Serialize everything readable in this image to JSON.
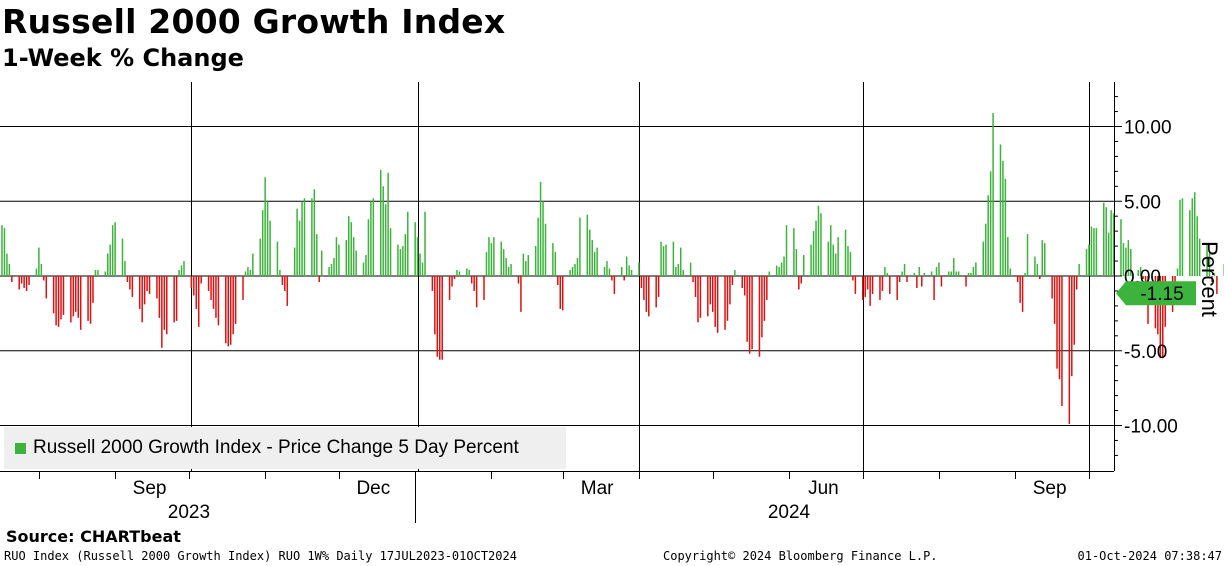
{
  "header": {
    "title": "Russell 2000 Growth Index",
    "subtitle": "1-Week % Change"
  },
  "source": "Source: CHARTbeat",
  "footer": {
    "left": "RUO Index (Russell 2000 Growth Index) RUO 1W% Daily 17JUL2023-01OCT2024",
    "center": "Copyright© 2024 Bloomberg Finance L.P.",
    "right": "01-Oct-2024 07:38:47"
  },
  "colors": {
    "positive": "#3cb43c",
    "negative": "#e01010",
    "last_value_tag": "#3cb43c"
  },
  "chart_data": {
    "type": "bar",
    "title": "Russell 2000 Growth Index",
    "subtitle": "1-Week % Change",
    "ylabel": "Percent",
    "ylim": [
      -13,
      13
    ],
    "yticks": [
      10,
      5,
      0,
      -5,
      -10
    ],
    "ytick_labels": [
      "10.00",
      "5.00",
      "0.00",
      "-5.00",
      "-10.00"
    ],
    "x_range": [
      "2023-07-17",
      "2024-10-01"
    ],
    "month_ticks": [
      {
        "label": "Sep",
        "date": "2023-09-15"
      },
      {
        "label": "Dec",
        "date": "2023-12-15"
      },
      {
        "label": "Mar",
        "date": "2024-03-15"
      },
      {
        "label": "Jun",
        "date": "2024-06-15"
      },
      {
        "label": "Sep",
        "date": "2024-09-15"
      }
    ],
    "year_labels": [
      {
        "label": "2023",
        "center": "2023-10-01"
      },
      {
        "label": "2024",
        "center": "2024-06-01"
      }
    ],
    "grid": true,
    "legend": {
      "position": "bottom-left",
      "label": "Russell 2000 Growth Index - Price Change 5 Day Percent"
    },
    "last_value": -1.15,
    "last_value_label": "-1.15",
    "series": [
      {
        "name": "Russell 2000 Growth Index - Price Change 5 Day Percent",
        "start_date": "2023-07-17",
        "frequency": "business-daily",
        "values": [
          3.4,
          3.2,
          1.5,
          0.8,
          -0.4,
          -0.9,
          -0.5,
          -0.8,
          -1.0,
          -0.6,
          0.5,
          1.9,
          0.8,
          -0.3,
          -1.5,
          -2.5,
          -3.3,
          -3.4,
          -2.9,
          -2.6,
          -3.1,
          -2.7,
          -2.4,
          -2.8,
          -3.6,
          -3.0,
          -3.2,
          -1.8,
          0.4,
          0.4,
          0.3,
          1.5,
          2.1,
          3.4,
          3.6,
          2.5,
          1.0,
          -0.4,
          -0.9,
          -1.4,
          -2.2,
          -3.1,
          -1.9,
          -1.0,
          -1.2,
          -1.5,
          -2.8,
          -4.8,
          -3.6,
          -3.9,
          -3.1,
          -3.0,
          0.4,
          0.7,
          1.0,
          -0.8,
          -1.3,
          -2.2,
          -3.4,
          -0.5,
          -1.0,
          -1.6,
          -2.2,
          -2.8,
          -3.3,
          -4.5,
          -4.7,
          -4.6,
          -3.9,
          -3.2,
          -1.6,
          0.3,
          0.6,
          0.4,
          1.5,
          2.5,
          4.4,
          6.6,
          5.0,
          3.7,
          2.3,
          0.4,
          -0.6,
          -1.0,
          -2.0,
          1.9,
          4.5,
          3.7,
          5.0,
          5.2,
          5.2,
          5.8,
          2.8,
          -0.4,
          1.7,
          0.6,
          0.8,
          1.2,
          2.6,
          2.1,
          2.4,
          4.0,
          3.6,
          2.6,
          1.7,
          0.9,
          1.4,
          3.8,
          5.0,
          5.2,
          7.1,
          6.0,
          4.8,
          6.9,
          3.2,
          2.1,
          1.8,
          2.0,
          2.8,
          4.3,
          3.6,
          2.6,
          1.5,
          0.9,
          4.3,
          -1.0,
          -3.9,
          -5.4,
          -5.6,
          -5.6,
          -1.6,
          -0.7,
          -0.2,
          0.4,
          0.3,
          0.5,
          0.4,
          -0.5,
          -1.0,
          -2.1,
          -1.6,
          1.6,
          2.6,
          2.2,
          2.6,
          2.3,
          1.8,
          1.2,
          0.6,
          0.8,
          -0.5,
          -2.4,
          1.5,
          1.0,
          1.4,
          2.0,
          3.9,
          6.3,
          5.0,
          3.5,
          2.2,
          1.6,
          -0.6,
          -2.2,
          -2.3,
          0.4,
          0.6,
          0.8,
          1.2,
          3.9,
          4.1,
          3.1,
          2.4,
          1.6,
          1.9,
          0.6,
          1.0,
          0.5,
          -0.3,
          -1.2,
          0.6,
          -0.3,
          1.3,
          0.7,
          0.4,
          0.9,
          -0.8,
          -1.6,
          -2.4,
          -2.7,
          -2.1,
          -1.4,
          2.3,
          2.0,
          2.1,
          2.3,
          0.6,
          0.8,
          1.9,
          0.4,
          0.9,
          -0.4,
          -1.4,
          -3.1,
          -2.8,
          -2.7,
          -1.9,
          -2.4,
          -3.4,
          -3.8,
          -3.6,
          -3.0,
          -1.9,
          -0.6,
          0.4,
          -0.8,
          -1.3,
          -4.4,
          -5.2,
          -4.9,
          -5.4,
          -4.1,
          -3.0,
          -1.6,
          0.3,
          0.7,
          0.6,
          0.9,
          1.3,
          3.4,
          3.2,
          1.8,
          -0.9,
          -0.5,
          1.4,
          2.1,
          3.0,
          3.7,
          4.7,
          4.2,
          2.3,
          3.4,
          2.1,
          1.5,
          2.6,
          3.1,
          2.0,
          1.6,
          -0.3,
          -1.2,
          -1.6,
          -1.4,
          -0.9,
          -2.0,
          -1.2,
          -1.6,
          -1.0,
          0.6,
          0.2,
          -1.2,
          -1.6,
          -0.4,
          0.3,
          0.8,
          -0.4,
          0.2,
          -0.8,
          0.6,
          -0.7,
          0.2,
          0.3,
          -1.6,
          0.6,
          0.9,
          -0.7,
          0.3,
          0.3,
          1.2,
          0.3,
          0.3,
          -0.7,
          0.2,
          0.2,
          0.6,
          0.9,
          2.3,
          3.5,
          5.4,
          7.0,
          10.9,
          8.8,
          7.7,
          6.5,
          2.6,
          0.5,
          -0.4,
          -1.8,
          -2.4,
          0.2,
          2.8,
          1.3,
          0.8,
          -0.2,
          2.4,
          2.2,
          -1.5,
          -3.2,
          -6.2,
          -6.9,
          -8.7,
          -9.9,
          -6.7,
          -4.6,
          -0.9,
          0.8,
          1.8,
          2.1,
          3.3,
          3.2,
          3.2,
          4.9,
          4.6,
          2.9,
          4.4,
          4.2,
          3.8,
          2.2,
          1.9,
          2.4,
          1.8,
          0.4,
          0.6,
          -0.2,
          -1.6,
          -3.2,
          -3.5,
          -3.9,
          -5.5,
          -5.5,
          -3.4,
          -2.4,
          -1.6,
          0.5,
          5.1,
          5.2,
          4.4,
          5.2,
          5.6,
          4.0,
          2.5,
          2.1,
          1.5,
          -0.4,
          0.2,
          -1.2,
          0.8,
          -1.15
        ]
      }
    ]
  }
}
